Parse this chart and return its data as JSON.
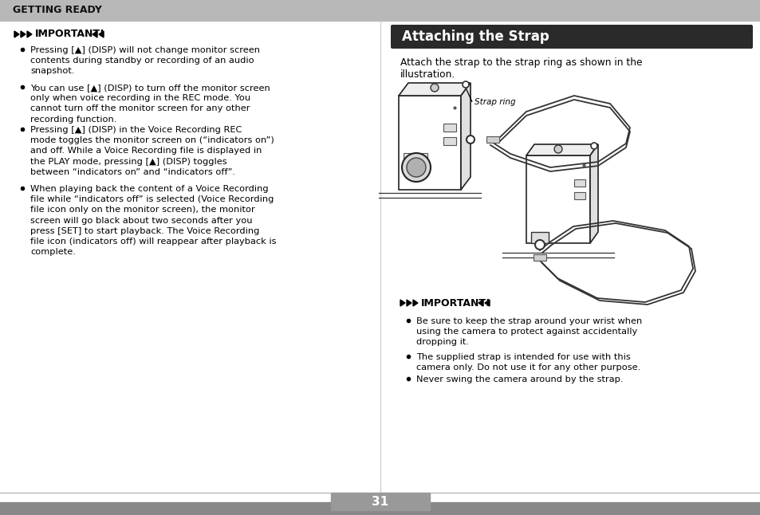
{
  "bg_color": "#ffffff",
  "header_bg": "#b8b8b8",
  "header_text": "GETTING READY",
  "divider_color": "#aaaaaa",
  "left_panel": {
    "bullets": [
      "Pressing [▲] (DISP) will not change monitor screen\ncontents during standby or recording of an audio\nsnapshot.",
      "You can use [▲] (DISP) to turn off the monitor screen\nonly when voice recording in the REC mode. You\ncannot turn off the monitor screen for any other\nrecording function.",
      "Pressing [▲] (DISP) in the Voice Recording REC\nmode toggles the monitor screen on (“indicators on”)\nand off. While a Voice Recording file is displayed in\nthe PLAY mode, pressing [▲] (DISP) toggles\nbetween “indicators on” and “indicators off”.",
      "When playing back the content of a Voice Recording\nfile while “indicators off” is selected (Voice Recording\nfile icon only on the monitor screen), the monitor\nscreen will go black about two seconds after you\npress [SET] to start playback. The Voice Recording\nfile icon (indicators off) will reappear after playback is\ncomplete."
    ]
  },
  "right_panel": {
    "section_title": "Attaching the Strap",
    "section_title_bg": "#2a2a2a",
    "section_title_color": "#ffffff",
    "intro_text": "Attach the strap to the strap ring as shown in the\nillustration.",
    "strap_ring_label": "Strap ring",
    "bullets": [
      "Be sure to keep the strap around your wrist when\nusing the camera to protect against accidentally\ndropping it.",
      "The supplied strap is intended for use with this\ncamera only. Do not use it for any other purpose.",
      "Never swing the camera around by the strap."
    ]
  },
  "page_number": "31",
  "page_number_bg": "#999999",
  "page_number_color": "#ffffff"
}
